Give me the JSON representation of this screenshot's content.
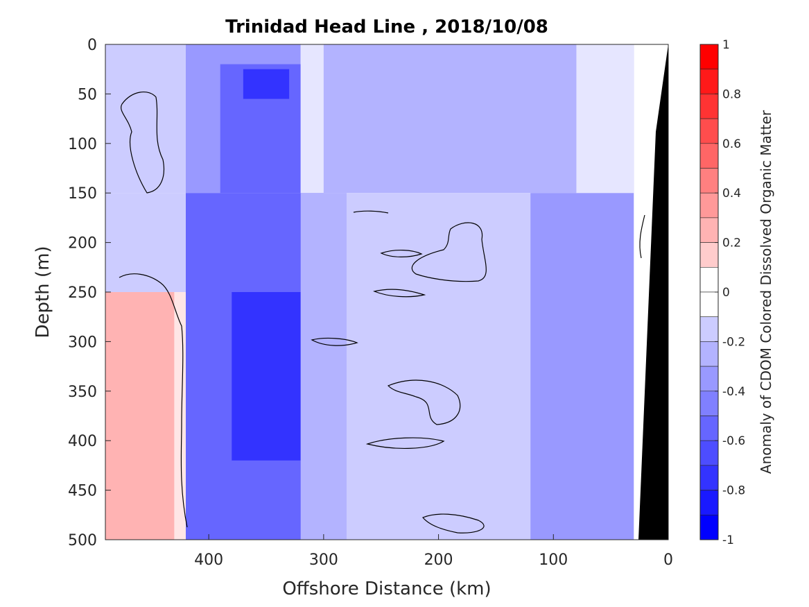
{
  "chart_data": {
    "type": "heatmap",
    "title": "Trinidad Head Line , 2018/10/08",
    "xlabel": "Offshore Distance (km)",
    "ylabel": "Depth (m)",
    "x_reversed": true,
    "y_reversed": true,
    "xlim": [
      490,
      0
    ],
    "ylim": [
      0,
      500
    ],
    "x_ticks": [
      "400",
      "300",
      "200",
      "100",
      "0"
    ],
    "x_tick_values": [
      400,
      300,
      200,
      100,
      0
    ],
    "y_ticks": [
      "0",
      "50",
      "100",
      "150",
      "200",
      "250",
      "300",
      "350",
      "400",
      "450",
      "500"
    ],
    "y_tick_values": [
      0,
      50,
      100,
      150,
      200,
      250,
      300,
      350,
      400,
      450,
      500
    ],
    "colorbar": {
      "label": "Anomaly of CDOM Colored Dissolved Organic Matter",
      "range": [
        -1,
        1
      ],
      "tick_labels": [
        "1",
        "0.8",
        "0.6",
        "0.4",
        "0.2",
        "0",
        "-0.2",
        "-0.4",
        "-0.6",
        "-0.8",
        "-1"
      ],
      "tick_values": [
        1,
        0.8,
        0.6,
        0.4,
        0.2,
        0,
        -0.2,
        -0.4,
        -0.6,
        -0.8,
        -1
      ],
      "levels": 20,
      "colors": {
        "negative": "#0000ff",
        "zero": "#ffffff",
        "positive": "#ff0000"
      }
    },
    "bottom_fill_color": "#000000",
    "zero_contour_color": "#000000",
    "regions": [
      {
        "x": [
          490,
          420
        ],
        "y": [
          0,
          150
        ],
        "value": -0.15
      },
      {
        "x": [
          490,
          420
        ],
        "y": [
          150,
          250
        ],
        "value": -0.15
      },
      {
        "x": [
          490,
          430
        ],
        "y": [
          250,
          500
        ],
        "value": 0.3
      },
      {
        "x": [
          430,
          410
        ],
        "y": [
          250,
          500
        ],
        "value": 0.05
      },
      {
        "x": [
          420,
          320
        ],
        "y": [
          0,
          150
        ],
        "value": -0.4
      },
      {
        "x": [
          390,
          320
        ],
        "y": [
          20,
          150
        ],
        "value": -0.6
      },
      {
        "x": [
          370,
          330
        ],
        "y": [
          25,
          55
        ],
        "value": -0.8
      },
      {
        "x": [
          420,
          300
        ],
        "y": [
          150,
          500
        ],
        "value": -0.6
      },
      {
        "x": [
          380,
          320
        ],
        "y": [
          250,
          420
        ],
        "value": -0.75
      },
      {
        "x": [
          320,
          280
        ],
        "y": [
          0,
          150
        ],
        "value": -0.1
      },
      {
        "x": [
          300,
          30
        ],
        "y": [
          0,
          150
        ],
        "value": -0.3
      },
      {
        "x": [
          300,
          120
        ],
        "y": [
          150,
          500
        ],
        "value": -0.15
      },
      {
        "x": [
          320,
          280
        ],
        "y": [
          150,
          500
        ],
        "value": -0.3
      },
      {
        "x": [
          120,
          30
        ],
        "y": [
          150,
          500
        ],
        "value": -0.4
      },
      {
        "x": [
          80,
          30
        ],
        "y": [
          0,
          150
        ],
        "value": -0.1
      }
    ]
  }
}
